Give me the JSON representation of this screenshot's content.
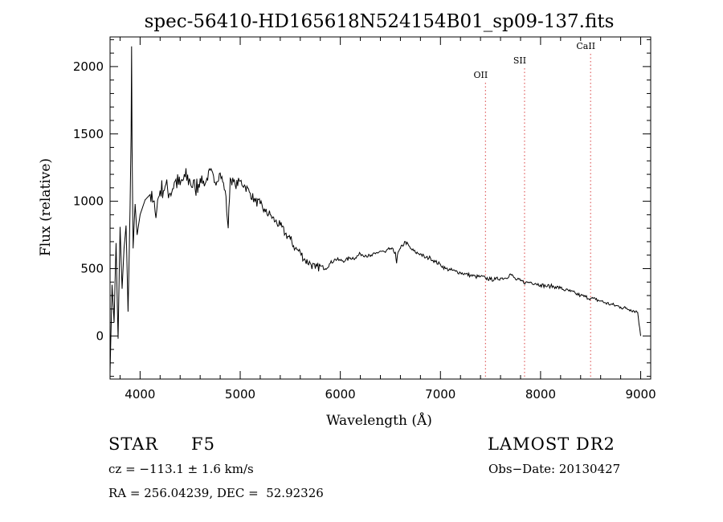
{
  "chart_data": {
    "type": "line",
    "title": "spec-56410-HD165618N524154B01_sp09-137.fits",
    "xlabel": "Wavelength (Å)",
    "ylabel": "Flux (relative)",
    "xlim": [
      3700,
      9100
    ],
    "ylim": [
      -320,
      2220
    ],
    "xticks": [
      4000,
      5000,
      6000,
      7000,
      8000,
      9000
    ],
    "yticks": [
      0,
      500,
      1000,
      1500,
      2000
    ],
    "line_color": "#000000",
    "marker_color": "#e06060",
    "markers": [
      {
        "label": "OII",
        "x": 7450
      },
      {
        "label": "SII",
        "x": 7840
      },
      {
        "label": "CaII",
        "x": 8500
      }
    ],
    "series": [
      {
        "x": [
          3700,
          3720,
          3740,
          3760,
          3780,
          3800,
          3820,
          3840,
          3860,
          3880,
          3900,
          3910,
          3915,
          3920,
          3930,
          3950,
          3970,
          4000,
          4050,
          4100,
          4150,
          4200,
          4250,
          4300,
          4350,
          4400,
          4450,
          4500,
          4550,
          4600,
          4650,
          4700,
          4750,
          4800,
          4850,
          4880,
          4900,
          4950,
          5000,
          5050,
          5100,
          5150,
          5200,
          5250,
          5300,
          5350,
          5400,
          5450,
          5500,
          5550,
          5600,
          5650,
          5700,
          5750,
          5800,
          5850,
          5900,
          5950,
          6000,
          6050,
          6100,
          6150,
          6200,
          6250,
          6300,
          6350,
          6400,
          6450,
          6500,
          6550,
          6562,
          6570,
          6600,
          6650,
          6700,
          6750,
          6800,
          6850,
          6900,
          6950,
          7000,
          7050,
          7100,
          7150,
          7200,
          7250,
          7300,
          7350,
          7400,
          7450,
          7500,
          7550,
          7600,
          7650,
          7700,
          7750,
          7800,
          7850,
          7900,
          7950,
          8000,
          8050,
          8100,
          8150,
          8200,
          8250,
          8300,
          8350,
          8400,
          8450,
          8500,
          8550,
          8600,
          8650,
          8700,
          8750,
          8800,
          8850,
          8900,
          8950,
          8970,
          8990,
          9000
        ],
        "y": [
          -280,
          380,
          100,
          690,
          -20,
          810,
          350,
          650,
          820,
          180,
          950,
          1500,
          2150,
          1400,
          650,
          980,
          750,
          900,
          1010,
          1050,
          920,
          1080,
          1110,
          1060,
          1150,
          1120,
          1180,
          1150,
          1090,
          1170,
          1130,
          1230,
          1140,
          1210,
          1080,
          800,
          1170,
          1120,
          1150,
          1110,
          1060,
          1000,
          980,
          920,
          900,
          850,
          820,
          760,
          720,
          650,
          620,
          560,
          540,
          500,
          520,
          500,
          540,
          570,
          560,
          560,
          580,
          580,
          610,
          600,
          590,
          610,
          630,
          620,
          650,
          620,
          540,
          600,
          650,
          700,
          650,
          620,
          610,
          580,
          580,
          550,
          530,
          500,
          490,
          480,
          470,
          460,
          450,
          440,
          440,
          430,
          420,
          420,
          430,
          430,
          460,
          420,
          410,
          395,
          400,
          390,
          380,
          370,
          370,
          365,
          355,
          340,
          330,
          315,
          300,
          290,
          280,
          270,
          260,
          245,
          235,
          225,
          215,
          205,
          195,
          185,
          175,
          60,
          0
        ]
      }
    ]
  },
  "info": {
    "class_label": "STAR",
    "subclass": "F5",
    "survey": "LAMOST DR2",
    "cz_line": "cz = −113.1 ± 1.6 km/s",
    "obs_date": "Obs−Date: 20130427",
    "radec_line": "RA = 256.04239, DEC =  52.92326"
  }
}
